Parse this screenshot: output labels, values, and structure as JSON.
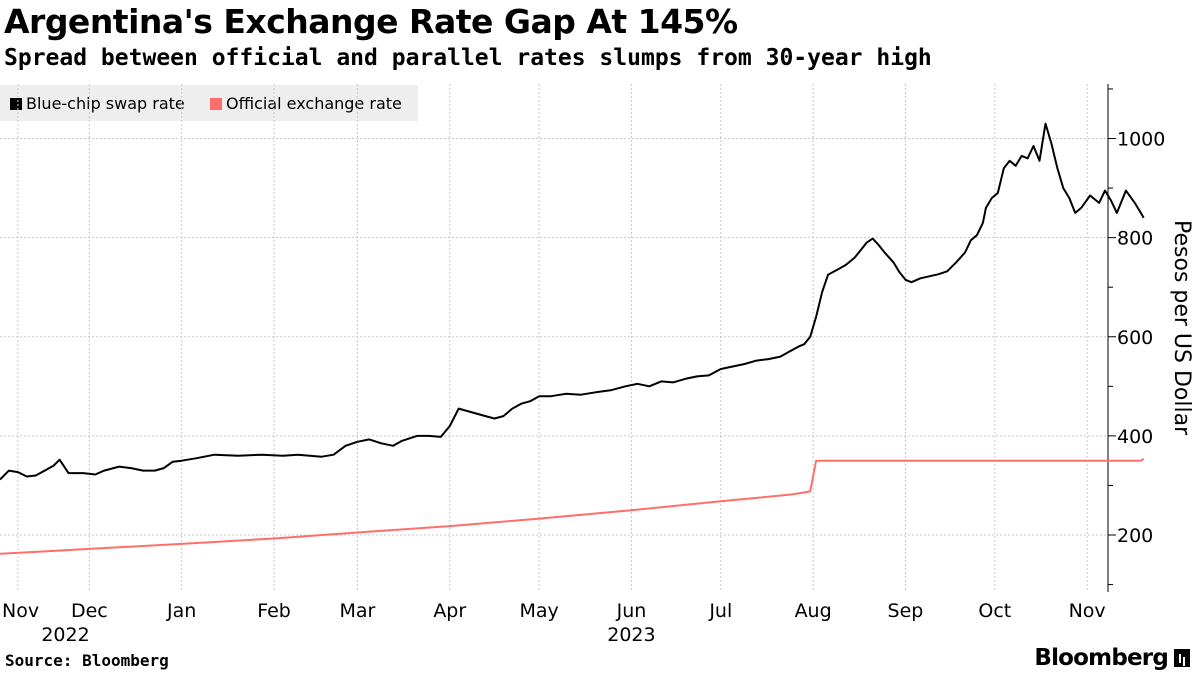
{
  "chart_data": {
    "type": "line",
    "title": "Argentina's Exchange Rate Gap At 145%",
    "subtitle": "Spread between official and parallel rates slumps from 30-year high",
    "ylabel": "Pesos per US Dollar",
    "xlabel": "",
    "ylim": [
      85,
      1110
    ],
    "yticks": [
      200,
      400,
      600,
      800,
      1000
    ],
    "xlim": [
      0,
      372
    ],
    "xticks": [
      {
        "label": "Nov",
        "x": 6
      },
      {
        "label": "Dec",
        "x": 30
      },
      {
        "label": "Jan",
        "x": 61
      },
      {
        "label": "Feb",
        "x": 92
      },
      {
        "label": "Mar",
        "x": 120
      },
      {
        "label": "Apr",
        "x": 151
      },
      {
        "label": "May",
        "x": 181
      },
      {
        "label": "Jun",
        "x": 212
      },
      {
        "label": "Jul",
        "x": 242
      },
      {
        "label": "Aug",
        "x": 273
      },
      {
        "label": "Sep",
        "x": 304
      },
      {
        "label": "Oct",
        "x": 334
      },
      {
        "label": "Nov",
        "x": 365
      }
    ],
    "year_labels": [
      {
        "label": "2022",
        "x": 22
      },
      {
        "label": "2023",
        "x": 212
      }
    ],
    "legend_position": "top-left",
    "series": [
      {
        "name": "Blue-chip swap rate",
        "color": "#000000",
        "points": [
          [
            0,
            312
          ],
          [
            3,
            330
          ],
          [
            6,
            327
          ],
          [
            9,
            318
          ],
          [
            12,
            320
          ],
          [
            15,
            330
          ],
          [
            18,
            340
          ],
          [
            20,
            352
          ],
          [
            23,
            325
          ],
          [
            28,
            325
          ],
          [
            32,
            322
          ],
          [
            35,
            330
          ],
          [
            40,
            338
          ],
          [
            44,
            335
          ],
          [
            48,
            330
          ],
          [
            52,
            330
          ],
          [
            55,
            335
          ],
          [
            58,
            348
          ],
          [
            61,
            350
          ],
          [
            66,
            355
          ],
          [
            72,
            362
          ],
          [
            80,
            360
          ],
          [
            88,
            362
          ],
          [
            95,
            360
          ],
          [
            100,
            362
          ],
          [
            104,
            360
          ],
          [
            108,
            358
          ],
          [
            112,
            362
          ],
          [
            116,
            380
          ],
          [
            120,
            388
          ],
          [
            124,
            393
          ],
          [
            128,
            385
          ],
          [
            132,
            380
          ],
          [
            135,
            390
          ],
          [
            140,
            400
          ],
          [
            144,
            400
          ],
          [
            148,
            398
          ],
          [
            151,
            420
          ],
          [
            154,
            455
          ],
          [
            157,
            450
          ],
          [
            160,
            445
          ],
          [
            163,
            440
          ],
          [
            166,
            435
          ],
          [
            169,
            440
          ],
          [
            172,
            455
          ],
          [
            175,
            465
          ],
          [
            178,
            470
          ],
          [
            181,
            480
          ],
          [
            185,
            480
          ],
          [
            190,
            485
          ],
          [
            195,
            483
          ],
          [
            200,
            488
          ],
          [
            205,
            492
          ],
          [
            210,
            500
          ],
          [
            214,
            505
          ],
          [
            218,
            500
          ],
          [
            222,
            510
          ],
          [
            226,
            508
          ],
          [
            230,
            515
          ],
          [
            234,
            520
          ],
          [
            238,
            522
          ],
          [
            242,
            535
          ],
          [
            246,
            540
          ],
          [
            250,
            545
          ],
          [
            254,
            552
          ],
          [
            258,
            555
          ],
          [
            262,
            560
          ],
          [
            265,
            570
          ],
          [
            268,
            580
          ],
          [
            270,
            585
          ],
          [
            272,
            600
          ],
          [
            274,
            640
          ],
          [
            276,
            690
          ],
          [
            278,
            725
          ],
          [
            281,
            735
          ],
          [
            284,
            745
          ],
          [
            287,
            760
          ],
          [
            289,
            775
          ],
          [
            291,
            790
          ],
          [
            293,
            798
          ],
          [
            295,
            785
          ],
          [
            297,
            770
          ],
          [
            300,
            750
          ],
          [
            302,
            730
          ],
          [
            304,
            715
          ],
          [
            306,
            710
          ],
          [
            309,
            718
          ],
          [
            312,
            722
          ],
          [
            315,
            726
          ],
          [
            318,
            732
          ],
          [
            321,
            750
          ],
          [
            324,
            770
          ],
          [
            326,
            795
          ],
          [
            328,
            805
          ],
          [
            330,
            830
          ],
          [
            331,
            860
          ],
          [
            333,
            880
          ],
          [
            335,
            890
          ],
          [
            337,
            940
          ],
          [
            339,
            955
          ],
          [
            341,
            945
          ],
          [
            343,
            965
          ],
          [
            345,
            960
          ],
          [
            347,
            985
          ],
          [
            349,
            955
          ],
          [
            351,
            1030
          ],
          [
            353,
            990
          ],
          [
            355,
            940
          ],
          [
            357,
            900
          ],
          [
            359,
            880
          ],
          [
            361,
            850
          ],
          [
            363,
            860
          ],
          [
            366,
            885
          ],
          [
            369,
            870
          ],
          [
            371,
            895
          ],
          [
            373,
            875
          ],
          [
            375,
            850
          ],
          [
            378,
            895
          ],
          [
            381,
            870
          ],
          [
            383,
            850
          ],
          [
            384,
            840
          ]
        ]
      },
      {
        "name": "Official exchange rate",
        "color": "#ff6f69",
        "points": [
          [
            0,
            162
          ],
          [
            15,
            167
          ],
          [
            30,
            172
          ],
          [
            61,
            182
          ],
          [
            92,
            193
          ],
          [
            120,
            205
          ],
          [
            151,
            218
          ],
          [
            181,
            233
          ],
          [
            212,
            250
          ],
          [
            242,
            268
          ],
          [
            266,
            282
          ],
          [
            272,
            288
          ],
          [
            274,
            350
          ],
          [
            300,
            350
          ],
          [
            330,
            350
          ],
          [
            360,
            350
          ],
          [
            383,
            350
          ],
          [
            384,
            354
          ]
        ]
      }
    ]
  },
  "source": "Source: Bloomberg",
  "brand": "Bloomberg"
}
